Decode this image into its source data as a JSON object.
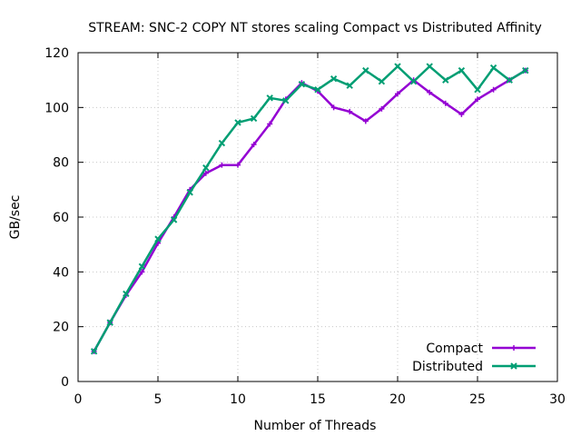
{
  "chart_data": {
    "type": "line",
    "title": "STREAM: SNC-2 COPY NT stores scaling Compact vs Distributed Affinity",
    "xlabel": "Number of Threads",
    "ylabel": "GB/sec",
    "xlim": [
      0,
      30
    ],
    "ylim": [
      0,
      120
    ],
    "xticks": [
      0,
      5,
      10,
      15,
      20,
      25,
      30
    ],
    "yticks": [
      0,
      20,
      40,
      60,
      80,
      100,
      120
    ],
    "grid": true,
    "legend_position": "bottom-right",
    "x": [
      1,
      2,
      3,
      4,
      5,
      6,
      7,
      8,
      9,
      10,
      11,
      12,
      13,
      14,
      15,
      16,
      17,
      18,
      19,
      20,
      21,
      22,
      23,
      24,
      25,
      26,
      27,
      28
    ],
    "series": [
      {
        "name": "Compact",
        "color": "#9400d3",
        "marker": "plus",
        "values": [
          11,
          21.5,
          31.5,
          40,
          50.5,
          60,
          70,
          76,
          79,
          79,
          86.5,
          94,
          103,
          109,
          106,
          100,
          98.5,
          95,
          99.5,
          105,
          110,
          105.5,
          101.5,
          97.5,
          103,
          106.5,
          110,
          113.5
        ]
      },
      {
        "name": "Distributed",
        "color": "#009e73",
        "marker": "x",
        "values": [
          11,
          21.5,
          32,
          42,
          52,
          59,
          69,
          78,
          87,
          94.5,
          96,
          103.5,
          102.5,
          108.5,
          106.5,
          110.5,
          108,
          113.5,
          109.5,
          115,
          109.5,
          115,
          110,
          113.5,
          106.5,
          114.5,
          110,
          113.5
        ]
      }
    ]
  }
}
